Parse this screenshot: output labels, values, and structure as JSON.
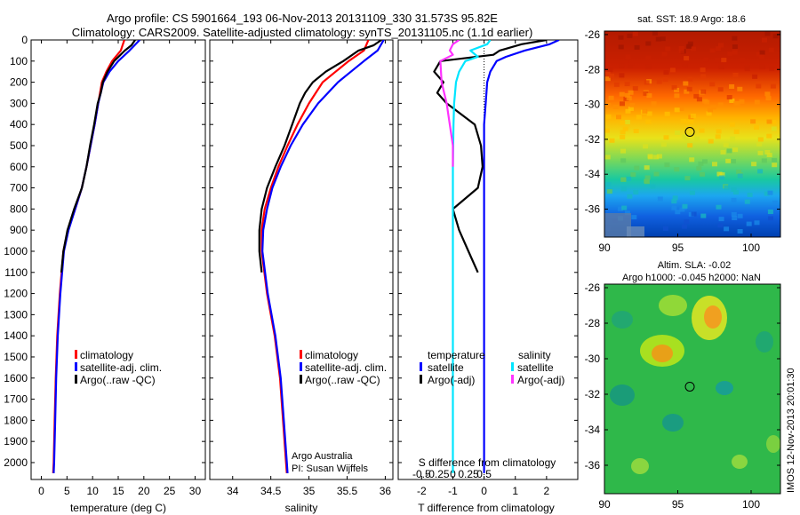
{
  "header": {
    "line1": "Argo profile: CS 5901664_193 06-Nov-2013 20131109_330 31.573S 95.82E",
    "line2": "Climatology: CARS2009. Satellite-adjusted climatology: synTS_20131105.nc (1.1d earlier)"
  },
  "footer_side": "IMOS 12-Nov-2013 20:01:30",
  "credit": {
    "line1": "Argo Australia",
    "line2": "PI: Susan Wijffels"
  },
  "colors": {
    "climatology": "#ff0000",
    "satellite": "#0000ff",
    "argo": "#000000",
    "sal_sat": "#00e5ff",
    "sal_argo": "#ff33ff"
  },
  "chart_data": [
    {
      "type": "line",
      "xlabel": "temperature (deg C)",
      "xlim": [
        -2,
        32
      ],
      "xticks": [
        0,
        5,
        10,
        15,
        20,
        25,
        30
      ],
      "ylim": [
        2080,
        0
      ],
      "yticks": [
        0,
        100,
        200,
        300,
        400,
        500,
        600,
        700,
        800,
        900,
        1000,
        1100,
        1200,
        1300,
        1400,
        1500,
        1600,
        1700,
        1800,
        1900,
        2000
      ],
      "legend": [
        "climatology",
        "satellite-adj. clim.",
        "Argo(..raw -QC)"
      ],
      "series": [
        {
          "name": "climatology",
          "color": "#ff0000",
          "depth": [
            0,
            50,
            100,
            150,
            200,
            300,
            400,
            500,
            600,
            700,
            800,
            900,
            1000,
            1200,
            1400,
            1600,
            1800,
            2000,
            2050
          ],
          "values": [
            16.2,
            15.5,
            13.8,
            12.7,
            11.8,
            11.1,
            10.4,
            9.6,
            8.8,
            7.9,
            6.6,
            5.2,
            4.3,
            3.6,
            3.1,
            2.8,
            2.6,
            2.4,
            2.3
          ]
        },
        {
          "name": "satellite-adj. clim.",
          "color": "#0000ff",
          "depth": [
            0,
            50,
            100,
            150,
            200,
            300,
            400,
            500,
            600,
            700,
            800,
            900,
            1000,
            1200,
            1400,
            1600,
            1800,
            2000,
            2050
          ],
          "values": [
            19.2,
            17.2,
            15.0,
            13.3,
            12.1,
            11.1,
            10.4,
            9.6,
            8.8,
            7.9,
            6.6,
            5.3,
            4.4,
            3.7,
            3.2,
            2.9,
            2.7,
            2.5,
            2.4
          ]
        },
        {
          "name": "Argo(..raw -QC)",
          "color": "#000000",
          "depth": [
            0,
            25,
            50,
            100,
            150,
            200,
            250,
            300,
            400,
            500,
            600,
            700,
            800,
            900,
            1000,
            1100
          ],
          "values": [
            18.3,
            17.6,
            16.3,
            14.2,
            12.9,
            12.0,
            11.6,
            11.0,
            10.3,
            9.5,
            8.8,
            7.9,
            6.4,
            5.1,
            4.3,
            3.9
          ]
        }
      ]
    },
    {
      "type": "line",
      "xlabel": "salinity",
      "xlim": [
        33.7,
        36.1
      ],
      "xticks": [
        34,
        34.5,
        35,
        35.5,
        36
      ],
      "xticklabels": [
        "34",
        "34.5",
        "35",
        "35.5",
        "36"
      ],
      "ylim": [
        2080,
        0
      ],
      "legend": [
        "climatology",
        "satellite-adj. clim.",
        "Argo(..raw -QC)"
      ],
      "series": [
        {
          "name": "climatology",
          "color": "#ff0000",
          "depth": [
            0,
            50,
            100,
            150,
            200,
            300,
            400,
            500,
            600,
            700,
            800,
            900,
            1000,
            1200,
            1400,
            1600,
            1800,
            2000,
            2050
          ],
          "values": [
            35.78,
            35.72,
            35.52,
            35.35,
            35.18,
            35.0,
            34.85,
            34.72,
            34.6,
            34.5,
            34.42,
            34.38,
            34.38,
            34.45,
            34.55,
            34.62,
            34.66,
            34.7,
            34.71
          ]
        },
        {
          "name": "satellite-adj. clim.",
          "color": "#0000ff",
          "depth": [
            0,
            50,
            100,
            150,
            200,
            300,
            400,
            500,
            600,
            700,
            800,
            900,
            1000,
            1200,
            1400,
            1600,
            1800,
            2000,
            2050
          ],
          "values": [
            35.98,
            35.9,
            35.72,
            35.55,
            35.38,
            35.12,
            34.92,
            34.76,
            34.63,
            34.52,
            34.45,
            34.4,
            34.39,
            34.46,
            34.56,
            34.63,
            34.67,
            34.71,
            34.72
          ]
        },
        {
          "name": "Argo(..raw -QC)",
          "color": "#000000",
          "depth": [
            0,
            25,
            50,
            100,
            150,
            200,
            250,
            300,
            400,
            500,
            600,
            700,
            800,
            900,
            1000,
            1100
          ],
          "values": [
            35.95,
            35.85,
            35.65,
            35.45,
            35.22,
            35.05,
            34.95,
            34.88,
            34.78,
            34.68,
            34.56,
            34.45,
            34.38,
            34.35,
            34.35,
            34.38
          ]
        }
      ]
    },
    {
      "type": "line",
      "xlabel": "T difference from climatology",
      "top_xlabel": "S difference from climatology",
      "xlim": [
        -2.75,
        3.0
      ],
      "xticks": [
        -2,
        -1,
        0,
        1,
        2
      ],
      "top_xticks": [
        -0.5,
        -0.25,
        0,
        0.25,
        0.5
      ],
      "top_xticklabels": [
        "-0.5",
        "-0.25",
        "0",
        "0.25",
        "0.5"
      ],
      "ylim": [
        2080,
        0
      ],
      "legend_temperature": {
        "title": "temperature",
        "items": [
          "satellite",
          "Argo(-adj)"
        ]
      },
      "legend_salinity": {
        "title": "salinity",
        "items": [
          "satellite",
          "Argo(-adj)"
        ]
      },
      "series": [
        {
          "name": "temperature satellite",
          "color": "#0000ff",
          "depth": [
            0,
            20,
            50,
            80,
            100,
            150,
            200,
            300,
            400,
            600,
            800,
            1000,
            1200,
            1500,
            1800,
            2050
          ],
          "values": [
            2.4,
            2.1,
            1.3,
            0.7,
            0.4,
            0.2,
            0.1,
            0.05,
            0.0,
            0.0,
            0.0,
            0.0,
            0.0,
            0.0,
            0.0,
            0.0
          ]
        },
        {
          "name": "temperature Argo(-adj)",
          "color": "#000000",
          "depth": [
            0,
            20,
            50,
            70,
            100,
            150,
            200,
            250,
            300,
            400,
            500,
            600,
            700,
            800,
            900,
            1000,
            1100
          ],
          "values": [
            2.0,
            1.2,
            0.5,
            0.3,
            -1.4,
            -1.6,
            -1.3,
            -1.5,
            -1.2,
            -0.3,
            -0.1,
            -0.05,
            -0.2,
            -1.0,
            -0.8,
            -0.5,
            -0.2
          ]
        },
        {
          "name": "salinity satellite",
          "color": "#00e5ff",
          "depth": [
            0,
            20,
            50,
            80,
            100,
            150,
            200,
            300,
            400,
            600,
            800,
            1000,
            1200,
            1500,
            2050
          ],
          "values": [
            0.6,
            0.55,
            0.28,
            0.4,
            0.2,
            0.1,
            0.05,
            0.02,
            0.01,
            0.0,
            0.0,
            0.0,
            0.0,
            0.0,
            0.0
          ]
        },
        {
          "name": "salinity Argo(-adj)",
          "color": "#ff33ff",
          "depth": [
            0,
            20,
            50,
            70,
            100,
            200,
            300,
            400,
            500,
            600
          ],
          "values": [
            0.1,
            0.0,
            -0.05,
            0.0,
            -0.2,
            -0.18,
            -0.1,
            -0.05,
            0.0,
            0.0
          ]
        }
      ]
    },
    {
      "type": "heatmap",
      "title": "sat. SST: 18.9 Argo: 18.6",
      "xlim": [
        90,
        102
      ],
      "xticks": [
        90,
        95,
        100
      ],
      "ylim": [
        -37.6,
        -25.8
      ],
      "yticks": [
        -26,
        -28,
        -30,
        -32,
        -34,
        -36
      ],
      "marker": [
        95.82,
        -31.573
      ]
    },
    {
      "type": "heatmap",
      "title": "Altim. SLA: -0.02",
      "subtitle": "Argo h1000: -0.045 h2000: NaN",
      "xlim": [
        90,
        102
      ],
      "xticks": [
        90,
        95,
        100
      ],
      "ylim": [
        -37.6,
        -25.8
      ],
      "yticks": [
        -26,
        -28,
        -30,
        -32,
        -34,
        -36
      ],
      "marker": [
        95.82,
        -31.573
      ]
    }
  ]
}
